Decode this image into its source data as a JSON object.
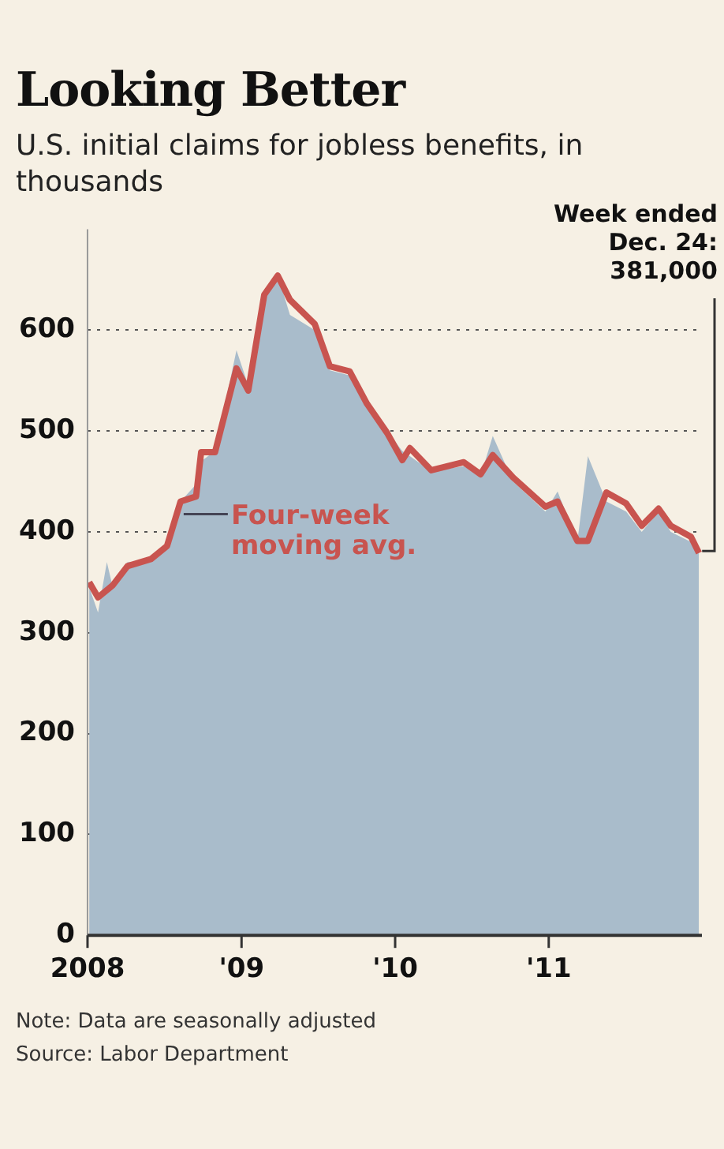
{
  "chart_data": {
    "type": "area",
    "title": "Looking Better",
    "subtitle": "U.S. initial claims for jobless benefits, in thousands",
    "xlim": [
      "2008-01-01",
      "2011-12-31"
    ],
    "xticks": [
      {
        "value": "2008-01-01",
        "label": "2008"
      },
      {
        "value": "2009-01-01",
        "label": "'09"
      },
      {
        "value": "2010-01-01",
        "label": "'10"
      },
      {
        "value": "2011-01-01",
        "label": "'11"
      }
    ],
    "ylim": [
      0,
      700
    ],
    "yticks": [
      0,
      100,
      200,
      300,
      400,
      500,
      600
    ],
    "grid": "y",
    "legend": false,
    "marker": "none",
    "series": [
      {
        "color": "#a9bccb",
        "x": [
          "2008-01-05",
          "2008-01-26",
          "2008-02-16",
          "2008-03-01",
          "2008-04-05",
          "2008-05-31",
          "2008-07-08",
          "2008-08-09",
          "2008-09-15",
          "2008-09-27",
          "2008-10-30",
          "2008-12-20",
          "2009-01-17",
          "2009-02-24",
          "2009-03-28",
          "2009-04-26",
          "2009-06-24",
          "2009-07-30",
          "2009-09-15",
          "2009-10-26",
          "2009-12-13",
          "2010-01-18",
          "2010-02-05",
          "2010-03-28",
          "2010-06-13",
          "2010-07-23",
          "2010-08-21",
          "2010-10-08",
          "2010-12-24",
          "2011-01-22",
          "2011-03-10",
          "2011-04-04",
          "2011-05-18",
          "2011-07-04",
          "2011-08-10",
          "2011-09-19",
          "2011-10-18",
          "2011-12-05",
          "2011-12-24"
        ],
        "values": [
          345,
          320,
          370,
          345,
          370,
          370,
          385,
          430,
          447,
          470,
          480,
          580,
          545,
          640,
          655,
          615,
          600,
          560,
          555,
          525,
          500,
          480,
          475,
          460,
          465,
          455,
          495,
          450,
          420,
          440,
          390,
          475,
          430,
          420,
          400,
          420,
          400,
          390,
          381
        ]
      },
      {
        "type": "line",
        "name": "Four-week moving avg.",
        "color": "#c8544f",
        "x": [
          "2008-01-05",
          "2008-01-26",
          "2008-03-01",
          "2008-04-05",
          "2008-05-31",
          "2008-07-08",
          "2008-08-09",
          "2008-09-15",
          "2008-09-27",
          "2008-10-30",
          "2008-12-20",
          "2009-01-17",
          "2009-02-24",
          "2009-03-28",
          "2009-04-26",
          "2009-06-24",
          "2009-07-30",
          "2009-09-15",
          "2009-10-26",
          "2009-12-13",
          "2010-01-18",
          "2010-02-05",
          "2010-03-28",
          "2010-06-13",
          "2010-07-23",
          "2010-08-21",
          "2010-10-08",
          "2010-12-24",
          "2011-01-22",
          "2011-03-10",
          "2011-04-04",
          "2011-05-18",
          "2011-07-04",
          "2011-08-10",
          "2011-09-19",
          "2011-10-18",
          "2011-12-05",
          "2011-12-24"
        ],
        "values": [
          350,
          335,
          347,
          366,
          373,
          386,
          430,
          435,
          479,
          479,
          562,
          540,
          635,
          654,
          630,
          606,
          564,
          559,
          527,
          498,
          471,
          483,
          461,
          469,
          457,
          476,
          454,
          425,
          430,
          391,
          391,
          439,
          428,
          406,
          423,
          406,
          395,
          379
        ]
      }
    ],
    "annotations": [
      {
        "text": "Week ended Dec. 24: 381,000",
        "x": "2011-12-24",
        "y": 381
      },
      "Note: Data are seasonally adjusted",
      "Source: Labor Department"
    ]
  }
}
